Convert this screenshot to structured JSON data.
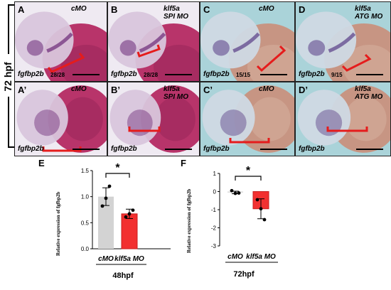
{
  "side_label": "72 hpf",
  "colors": {
    "bracket": "#e51c1c",
    "bar_cmo": "#d3d3d3",
    "bar_klf5a": "#f23030"
  },
  "panels": [
    {
      "id": "A",
      "label": "A",
      "condition": [
        "cMO"
      ],
      "gene": "fgfbp2b",
      "count": "28/28",
      "bg": "light"
    },
    {
      "id": "B",
      "label": "B",
      "condition": [
        "klf5a",
        "SPI MO"
      ],
      "gene": "fgfbp2b",
      "count": "28/28",
      "bg": "light"
    },
    {
      "id": "C",
      "label": "C",
      "condition": [
        "cMO"
      ],
      "gene": "fgfbp2b",
      "count": "15/15",
      "bg": "teal"
    },
    {
      "id": "D",
      "label": "D",
      "condition": [
        "klf5a",
        "ATG MO"
      ],
      "gene": "fgfbp2b",
      "count": "9/15",
      "bg": "teal"
    },
    {
      "id": "A2",
      "label": "A’",
      "condition": [
        "cMO"
      ],
      "gene": "fgfbp2b",
      "count": "",
      "bg": "light"
    },
    {
      "id": "B2",
      "label": "B’",
      "condition": [
        "klf5a",
        "SPI MO"
      ],
      "gene": "fgfbp2b",
      "count": "",
      "bg": "light"
    },
    {
      "id": "C2",
      "label": "C’",
      "condition": [
        "cMO"
      ],
      "gene": "fgfbp2b",
      "count": "",
      "bg": "teal"
    },
    {
      "id": "D2",
      "label": "D’",
      "condition": [
        "klf5a",
        "ATG MO"
      ],
      "gene": "fgfbp2b",
      "count": "",
      "bg": "teal"
    }
  ],
  "charts": [
    {
      "label": "E",
      "ylabel": "Relative expression of fgfbp2b",
      "stage": "48hpf",
      "significance": "*",
      "chart_data": {
        "type": "bar",
        "categories": [
          "cMO",
          "klf5a MO"
        ],
        "values": [
          1.0,
          0.67
        ],
        "errors": [
          0.17,
          0.09
        ],
        "points": [
          [
            0.82,
            0.97,
            1.2
          ],
          [
            0.61,
            0.67,
            0.74
          ]
        ],
        "ylim": [
          0,
          1.5
        ],
        "yticks": [
          "0.0",
          "0.5",
          "1.0",
          "1.5"
        ],
        "ytick_values": [
          0,
          0.5,
          1.0,
          1.5
        ]
      }
    },
    {
      "label": "F",
      "ylabel": "Relative expression of fgfbp2b",
      "stage": "72hpf",
      "significance": "*",
      "chart_data": {
        "type": "bar",
        "categories": [
          "cMO",
          "klf5a MO"
        ],
        "values": [
          -0.05,
          -0.95
        ],
        "errors": [
          0.07,
          0.55
        ],
        "points": [
          [
            0.05,
            -0.1,
            -0.08
          ],
          [
            -0.45,
            -0.95,
            -1.55
          ]
        ],
        "ylim": [
          -3,
          1
        ],
        "yticks": [
          "-3",
          "-2",
          "-1",
          "0",
          "1"
        ],
        "ytick_values": [
          -3,
          -2,
          -1,
          0,
          1
        ]
      }
    }
  ]
}
